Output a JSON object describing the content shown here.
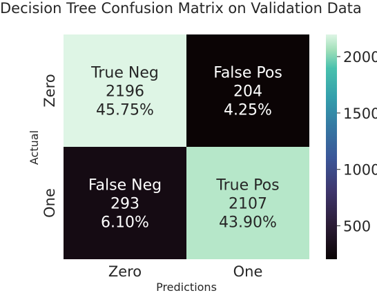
{
  "chart_data": {
    "type": "heatmap",
    "title": "Decision Tree Confusion Matrix on Validation Data",
    "xlabel": "Predictions",
    "ylabel": "Actual",
    "x_categories": [
      "Zero",
      "One"
    ],
    "y_categories": [
      "Zero",
      "One"
    ],
    "values": [
      [
        2196,
        204
      ],
      [
        293,
        2107
      ]
    ],
    "cell_labels": [
      [
        [
          "True Neg",
          "2196",
          "45.75%"
        ],
        [
          "False Pos",
          "204",
          "4.25%"
        ]
      ],
      [
        [
          "False Neg",
          "293",
          "6.10%"
        ],
        [
          "True Pos",
          "2107",
          "43.90%"
        ]
      ]
    ],
    "colormap": "mako",
    "color_range": [
      204,
      2196
    ],
    "colorbar_ticks": [
      500,
      1000,
      1500,
      2000
    ]
  }
}
